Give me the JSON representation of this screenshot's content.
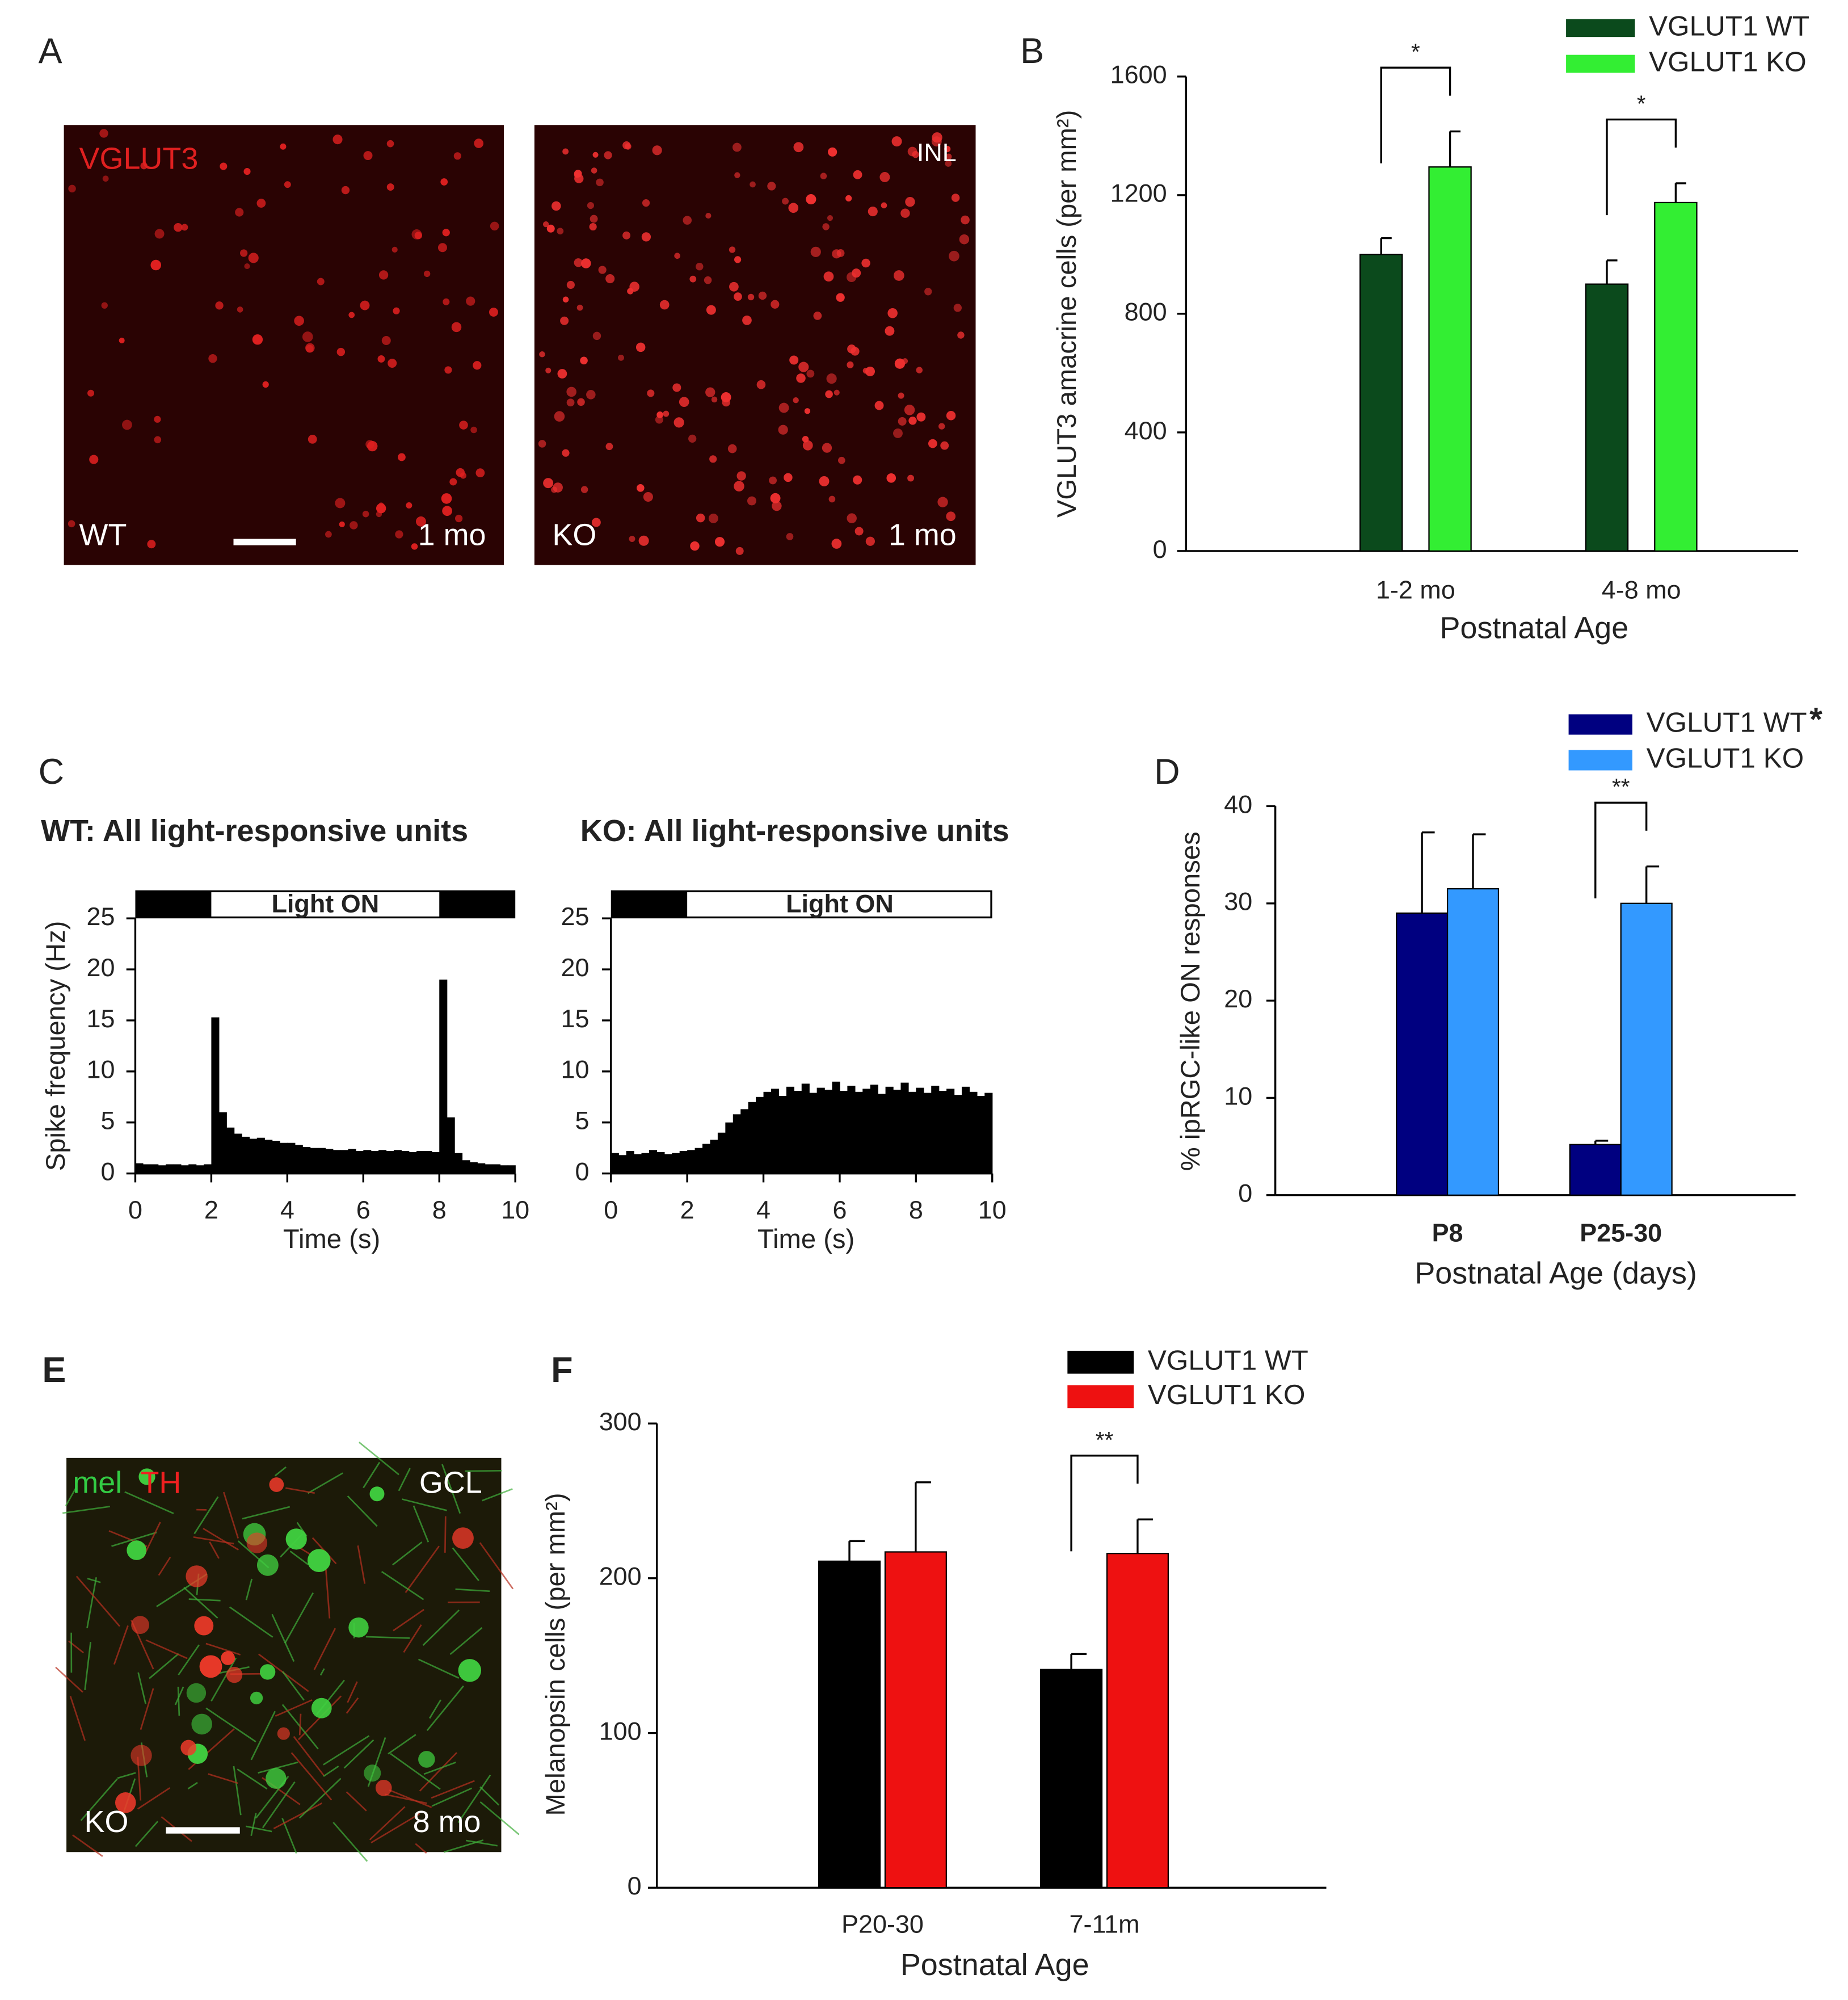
{
  "panel_labels": [
    "A",
    "B",
    "C",
    "D",
    "E",
    "F"
  ],
  "images": [
    {
      "labels": [
        "VGLUT3",
        "WT",
        "1 mo"
      ]
    },
    {
      "labels": [
        "INL",
        "KO",
        "1 mo"
      ]
    },
    {
      "labels": [
        "mel",
        "TH",
        "GCL",
        "KO",
        "8 mo"
      ]
    }
  ],
  "chart_data": [
    {
      "type": "bar",
      "categories": [
        "1-2 mo",
        "4-8 mo"
      ],
      "series": [
        {
          "name": "VGLUT1 WT",
          "color": "#0b4a1c",
          "values": [
            1000,
            900
          ],
          "errors": [
            55,
            80
          ]
        },
        {
          "name": "VGLUT1 KO",
          "color": "#33ee33",
          "values": [
            1295,
            1175
          ],
          "errors": [
            120,
            65
          ]
        }
      ],
      "significance": [
        "*",
        "*"
      ],
      "ylim": [
        0,
        1600
      ],
      "yticks": [
        0,
        400,
        800,
        1200,
        1600
      ],
      "ylabel": "VGLUT3 amacrine cells (per mm²)",
      "xlabel": "Postnatal Age"
    },
    {
      "type": "histogram",
      "title": "WT: All light-responsive units",
      "color": "#000000",
      "stimulus": {
        "label": "Light ON",
        "start": 2,
        "end": 8
      },
      "bins": [
        0,
        0.2,
        0.4,
        0.6,
        0.8,
        1,
        1.2,
        1.4,
        1.6,
        1.8,
        2,
        2.2,
        2.4,
        2.6,
        2.8,
        3,
        3.2,
        3.4,
        3.6,
        3.8,
        4,
        4.2,
        4.4,
        4.6,
        4.8,
        5,
        5.2,
        5.4,
        5.6,
        5.8,
        6,
        6.2,
        6.4,
        6.6,
        6.8,
        7,
        7.2,
        7.4,
        7.6,
        7.8,
        8,
        8.2,
        8.4,
        8.6,
        8.8,
        9,
        9.2,
        9.4,
        9.6,
        9.8,
        10
      ],
      "values": [
        1.0,
        0.9,
        0.9,
        0.8,
        0.9,
        0.9,
        0.8,
        0.9,
        0.8,
        0.9,
        15.3,
        6.0,
        4.5,
        3.9,
        3.6,
        3.4,
        3.5,
        3.3,
        3.2,
        3.0,
        3.0,
        2.8,
        2.6,
        2.5,
        2.5,
        2.4,
        2.3,
        2.3,
        2.4,
        2.2,
        2.3,
        2.2,
        2.3,
        2.2,
        2.3,
        2.2,
        2.1,
        2.2,
        2.2,
        2.1,
        19.0,
        5.5,
        2.0,
        1.3,
        1.1,
        1.0,
        0.9,
        0.9,
        0.8,
        0.8
      ],
      "xlim": [
        0,
        10
      ],
      "xticks": [
        0,
        2,
        4,
        6,
        8,
        10
      ],
      "ylim": [
        0,
        25
      ],
      "yticks": [
        0,
        5,
        10,
        15,
        20,
        25
      ],
      "xlabel": "Time (s)",
      "ylabel": "Spike frequency (Hz)"
    },
    {
      "type": "histogram",
      "title": "KO: All light-responsive units",
      "color": "#000000",
      "stimulus": {
        "label": "Light ON",
        "start": 2,
        "end": 10
      },
      "bins": [
        0,
        0.2,
        0.4,
        0.6,
        0.8,
        1,
        1.2,
        1.4,
        1.6,
        1.8,
        2,
        2.2,
        2.4,
        2.6,
        2.8,
        3,
        3.2,
        3.4,
        3.6,
        3.8,
        4,
        4.2,
        4.4,
        4.6,
        4.8,
        5,
        5.2,
        5.4,
        5.6,
        5.8,
        6,
        6.2,
        6.4,
        6.6,
        6.8,
        7,
        7.2,
        7.4,
        7.6,
        7.8,
        8,
        8.2,
        8.4,
        8.6,
        8.8,
        9,
        9.2,
        9.4,
        9.6,
        9.8,
        10
      ],
      "values": [
        2.0,
        1.8,
        2.2,
        1.9,
        2.0,
        2.3,
        2.1,
        1.9,
        2.0,
        2.2,
        2.3,
        2.5,
        2.9,
        3.3,
        4.0,
        5.0,
        5.8,
        6.3,
        7.0,
        7.5,
        8.0,
        8.3,
        7.6,
        8.5,
        8.1,
        8.8,
        7.9,
        8.4,
        8.2,
        9.0,
        8.1,
        8.6,
        8.0,
        8.3,
        8.7,
        7.8,
        8.5,
        8.2,
        8.9,
        8.0,
        8.4,
        7.9,
        8.6,
        8.1,
        8.3,
        7.7,
        8.5,
        8.0,
        7.6,
        7.9
      ],
      "xlim": [
        0,
        10
      ],
      "xticks": [
        0,
        2,
        4,
        6,
        8,
        10
      ],
      "ylim": [
        0,
        25
      ],
      "yticks": [
        0,
        5,
        10,
        15,
        20,
        25
      ],
      "xlabel": "Time (s)"
    },
    {
      "type": "bar",
      "categories": [
        "P8",
        "P25-30"
      ],
      "series": [
        {
          "name": "VGLUT1 WT",
          "color": "#000080",
          "values": [
            29,
            5.2
          ],
          "errors": [
            8.3,
            0.4
          ]
        },
        {
          "name": "VGLUT1 KO",
          "color": "#3399ff",
          "values": [
            31.5,
            30
          ],
          "errors": [
            5.6,
            3.8
          ]
        }
      ],
      "legend_note": "*",
      "significance": [
        null,
        "**"
      ],
      "ylim": [
        0,
        40
      ],
      "yticks": [
        0,
        10,
        20,
        30,
        40
      ],
      "ylabel": "% ipRGC-like ON responses",
      "xlabel": "Postnatal Age (days)"
    },
    {
      "type": "bar",
      "categories": [
        "P20-30",
        "7-11m"
      ],
      "series": [
        {
          "name": "VGLUT1 WT",
          "color": "#000000",
          "values": [
            211,
            141
          ],
          "errors": [
            13,
            10
          ]
        },
        {
          "name": "VGLUT1 KO",
          "color": "#ee1111",
          "values": [
            217,
            216
          ],
          "errors": [
            45,
            22
          ]
        }
      ],
      "significance": [
        null,
        "**"
      ],
      "ylim": [
        0,
        300
      ],
      "yticks": [
        0,
        100,
        200,
        300
      ],
      "ylabel": "Melanopsin cells (per mm²)",
      "xlabel": "Postnatal Age"
    }
  ]
}
